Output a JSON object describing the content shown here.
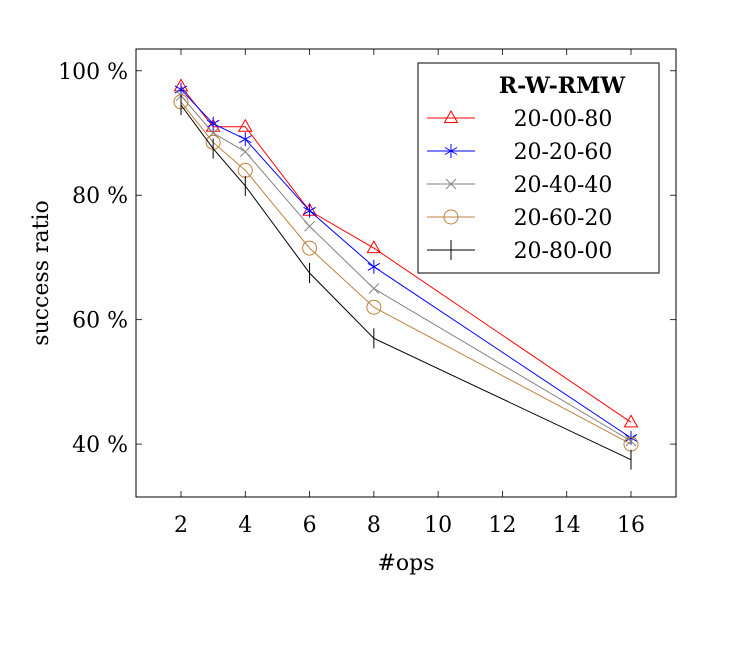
{
  "chart_data": {
    "type": "line",
    "xlabel": "#ops",
    "ylabel": "success ratio",
    "xlim": [
      0.6,
      17.4
    ],
    "ylim": [
      31.5,
      103.5
    ],
    "x_ticks": [
      2,
      4,
      6,
      8,
      10,
      12,
      14,
      16
    ],
    "x_tick_labels": [
      "2",
      "4",
      "6",
      "8",
      "10",
      "12",
      "14",
      "16"
    ],
    "y_ticks": [
      40,
      60,
      80,
      100
    ],
    "y_tick_labels": [
      "40 %",
      "60 %",
      "80 %",
      "100 %"
    ],
    "legend": {
      "title": "R-W-RMW",
      "position": "top-right"
    },
    "x": [
      2,
      3,
      4,
      6,
      8,
      16
    ],
    "series": [
      {
        "name": "20-00-80",
        "color": "#ff0000",
        "marker": "triangle",
        "values": [
          97.5,
          91.0,
          91.0,
          77.5,
          71.5,
          43.5
        ]
      },
      {
        "name": "20-20-60",
        "color": "#0000ff",
        "marker": "asterisk",
        "values": [
          97.0,
          91.5,
          89.0,
          77.5,
          68.5,
          41.0
        ]
      },
      {
        "name": "20-40-40",
        "color": "#808080",
        "marker": "cross",
        "values": [
          96.0,
          90.0,
          87.0,
          75.0,
          65.0,
          40.5
        ]
      },
      {
        "name": "20-60-20",
        "color": "#bf8040",
        "marker": "circle",
        "values": [
          95.0,
          88.5,
          84.0,
          71.5,
          62.0,
          40.0
        ]
      },
      {
        "name": "20-80-00",
        "color": "#000000",
        "marker": "vbar",
        "values": [
          94.5,
          87.5,
          81.5,
          67.5,
          57.0,
          37.5
        ]
      }
    ]
  }
}
